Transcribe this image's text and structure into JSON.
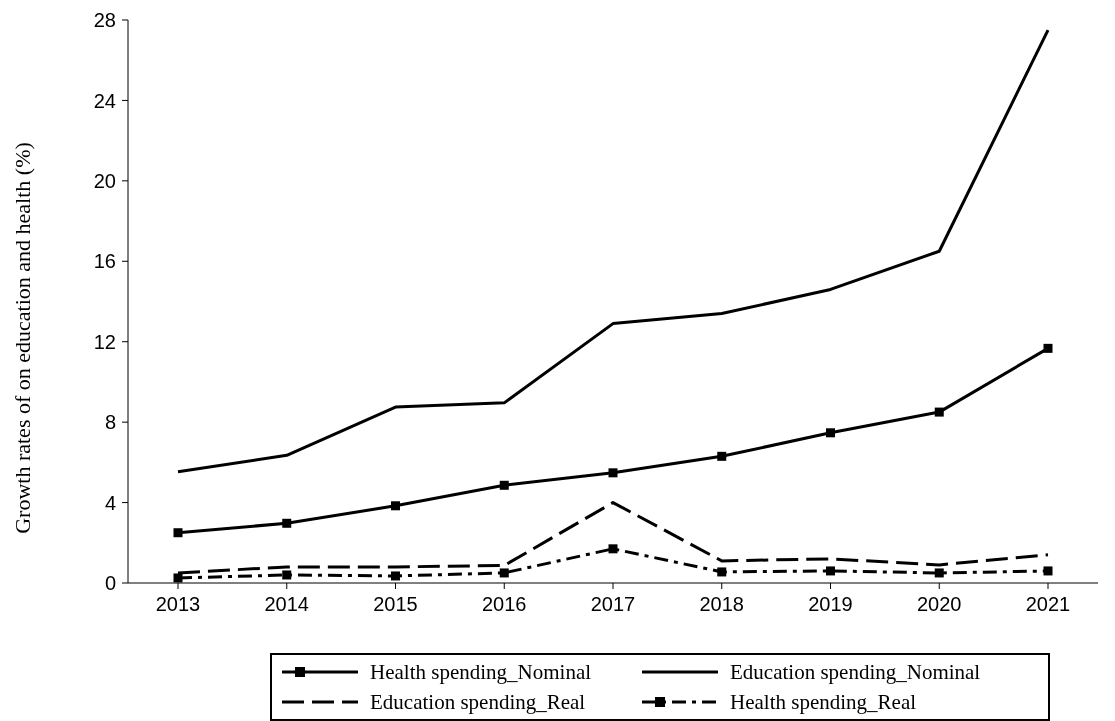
{
  "chart_data": {
    "type": "line",
    "ylabel": "Growth rates of on education and health (%)",
    "categories": [
      "2013",
      "2014",
      "2015",
      "2016",
      "2017",
      "2018",
      "2019",
      "2020",
      "2021"
    ],
    "series": [
      {
        "name": "Health spending_Nominal",
        "color": "#000000",
        "marker": "square",
        "line_style": "solid",
        "values": [
          2.5,
          2.97,
          3.84,
          4.86,
          5.48,
          6.3,
          7.47,
          8.5,
          11.67
        ]
      },
      {
        "name": "Education spending_Nominal",
        "color": "#000000",
        "marker": "none",
        "line_style": "solid",
        "values": [
          5.53,
          6.35,
          8.75,
          8.96,
          12.9,
          13.4,
          14.6,
          16.5,
          27.5
        ]
      },
      {
        "name": "Education spending_Real",
        "color": "#000000",
        "marker": "none",
        "line_style": "dashed",
        "values": [
          0.5,
          0.8,
          0.8,
          0.87,
          4.0,
          1.1,
          1.2,
          0.9,
          1.4
        ]
      },
      {
        "name": "Health spending_Real",
        "color": "#000000",
        "marker": "square",
        "line_style": "dashed",
        "values": [
          0.25,
          0.4,
          0.35,
          0.5,
          1.7,
          0.55,
          0.6,
          0.5,
          0.6
        ]
      }
    ],
    "ylim": [
      0,
      28
    ],
    "yticks": [
      0,
      4,
      8,
      12,
      16,
      20,
      24,
      28
    ],
    "grid": false,
    "legend": "bottom"
  }
}
